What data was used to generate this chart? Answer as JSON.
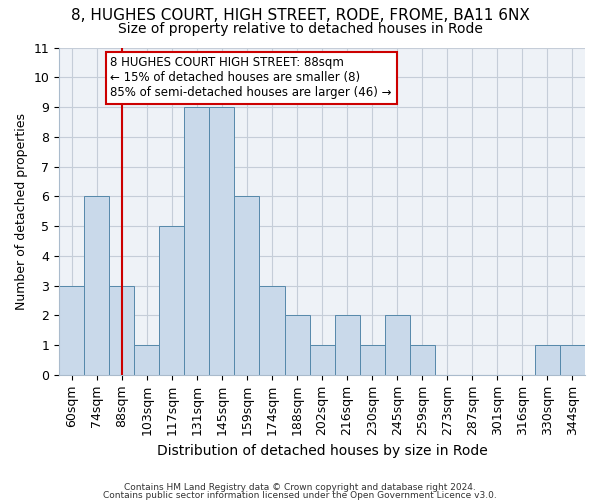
{
  "title1": "8, HUGHES COURT, HIGH STREET, RODE, FROME, BA11 6NX",
  "title2": "Size of property relative to detached houses in Rode",
  "xlabel": "Distribution of detached houses by size in Rode",
  "ylabel": "Number of detached properties",
  "categories": [
    "60sqm",
    "74sqm",
    "88sqm",
    "103sqm",
    "117sqm",
    "131sqm",
    "145sqm",
    "159sqm",
    "174sqm",
    "188sqm",
    "202sqm",
    "216sqm",
    "230sqm",
    "245sqm",
    "259sqm",
    "273sqm",
    "287sqm",
    "301sqm",
    "316sqm",
    "330sqm",
    "344sqm"
  ],
  "values": [
    3,
    6,
    3,
    1,
    5,
    9,
    9,
    6,
    3,
    2,
    1,
    2,
    1,
    2,
    1,
    0,
    0,
    0,
    0,
    1,
    1
  ],
  "bar_color": "#c9d9ea",
  "bar_edge_color": "#5588aa",
  "background_color": "#eef2f7",
  "grid_color": "#c5cdd8",
  "annotation_text": "8 HUGHES COURT HIGH STREET: 88sqm\n← 15% of detached houses are smaller (8)\n85% of semi-detached houses are larger (46) →",
  "vline_x_index": 2,
  "vline_color": "#cc0000",
  "annotation_box_color": "#cc0000",
  "ylim": [
    0,
    11
  ],
  "yticks": [
    0,
    1,
    2,
    3,
    4,
    5,
    6,
    7,
    8,
    9,
    10,
    11
  ],
  "title1_fontsize": 11,
  "title2_fontsize": 10,
  "ylabel_fontsize": 9,
  "xlabel_fontsize": 10,
  "tick_fontsize": 9,
  "ann_fontsize": 8.5,
  "footer1": "Contains HM Land Registry data © Crown copyright and database right 2024.",
  "footer2": "Contains public sector information licensed under the Open Government Licence v3.0."
}
